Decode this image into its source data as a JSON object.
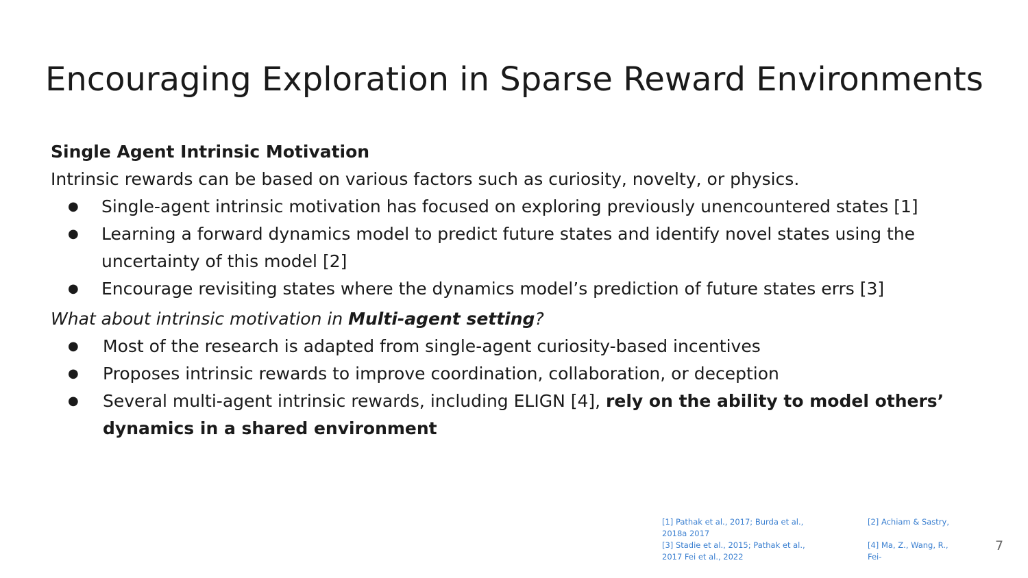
{
  "slide": {
    "title": "Encouraging Exploration in Sparse Reward Environments",
    "section_heading": "Single Agent Intrinsic Motivation",
    "intro": "Intrinsic rewards can be based on various factors such as curiosity, novelty, or physics.",
    "bullets_single": [
      "Single-agent intrinsic motivation has focused on exploring previously unencountered states [1]",
      "Learning a forward dynamics model to predict future states and identify novel states using the uncertainty of this model [2]",
      "Encourage revisiting states where the dynamics model’s prediction of future states errs [3]"
    ],
    "question": {
      "prefix": "What about intrinsic motivation in ",
      "bold": "Multi-agent setting",
      "suffix": "?"
    },
    "bullets_multi": [
      {
        "text": "Most of the research is adapted from single-agent curiosity-based incentives",
        "bold": ""
      },
      {
        "text": "Proposes intrinsic rewards to improve coordination, collaboration, or deception",
        "bold": ""
      },
      {
        "text": "Several multi-agent intrinsic rewards, including ELIGN [4], ",
        "bold": "rely on the ability to model others’ dynamics in a shared environment"
      }
    ],
    "bullet_glyph": "●",
    "references": [
      {
        "left": "[1] Pathak et al., 2017; Burda et al., 2018a 2017",
        "right": "[2] Achiam & Sastry,"
      },
      {
        "left": "[3] Stadie et al., 2015; Pathak et al., 2017 Fei et al., 2022",
        "right": "[4] Ma, Z., Wang, R., Fei-"
      }
    ],
    "page_number": "7"
  },
  "colors": {
    "text": "#1a1a1a",
    "reference_link": "#3a7fd0",
    "page_number": "#666666",
    "background": "#ffffff"
  }
}
